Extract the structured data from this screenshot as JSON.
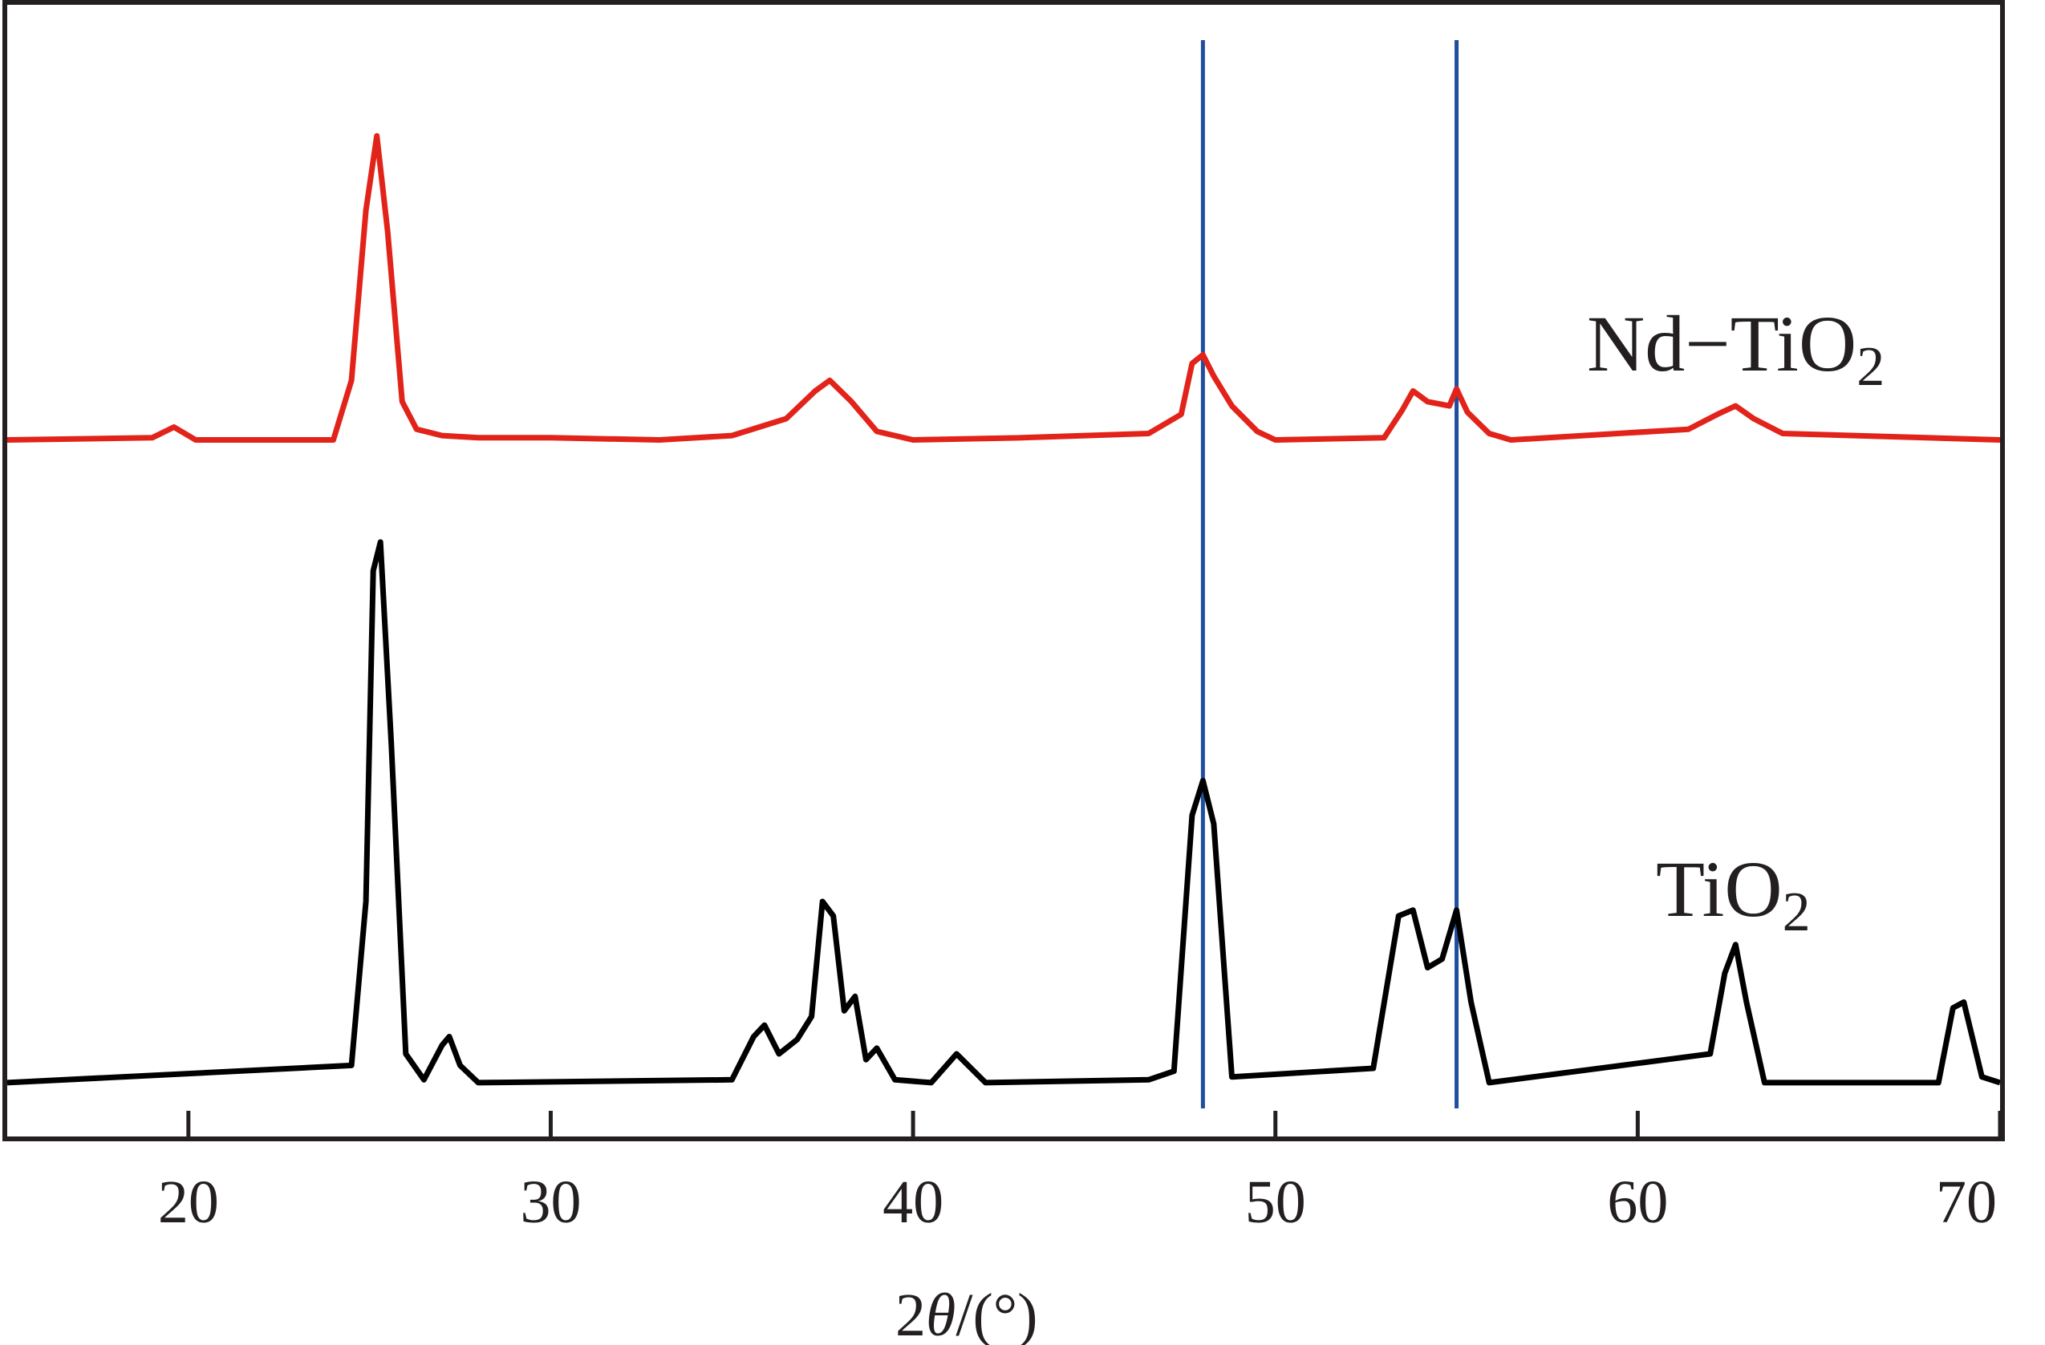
{
  "chart_data": {
    "type": "line",
    "title": "",
    "xlabel_parts": {
      "prefix": "2",
      "symbol": "θ",
      "suffix": "/(°)"
    },
    "ylabel": "",
    "xlim": [
      15,
      70
    ],
    "y_ticks_shown": false,
    "grid": false,
    "x_ticks": [
      20,
      30,
      40,
      50,
      60,
      70
    ],
    "reference_lines": [
      {
        "x": 48.0,
        "color": "#1f4e9e"
      },
      {
        "x": 55.0,
        "color": "#1f4e9e"
      }
    ],
    "series": [
      {
        "name_parts": {
          "prefix": "Nd−TiO",
          "subscript": "2"
        },
        "color": "#e2231a",
        "baseline": 0,
        "ylim": [
          -25,
          175
        ],
        "x": [
          15,
          19,
          19.6,
          20.2,
          24,
          24.5,
          24.9,
          25.2,
          25.5,
          25.9,
          26.3,
          27,
          28,
          30,
          33,
          35,
          36.5,
          37.3,
          37.7,
          38.3,
          39,
          40,
          43,
          46.5,
          47.4,
          47.7,
          48.0,
          48.3,
          48.8,
          49.5,
          50,
          53,
          53.5,
          53.8,
          54.2,
          54.8,
          55.0,
          55.3,
          55.9,
          56.5,
          61.4,
          62.2,
          62.7,
          63.2,
          64,
          70
        ],
        "y": [
          2,
          3,
          8,
          2,
          2,
          30,
          110,
          145,
          100,
          20,
          7,
          4,
          3,
          3,
          2,
          4,
          12,
          25,
          30,
          20,
          6,
          2,
          3,
          5,
          14,
          38,
          42,
          32,
          18,
          6,
          2,
          3,
          16,
          25,
          20,
          18,
          26,
          15,
          5,
          2,
          7,
          14,
          18,
          12,
          5,
          2
        ]
      },
      {
        "name_parts": {
          "prefix": "TiO",
          "subscript": "2"
        },
        "color": "#000000",
        "baseline": 0,
        "ylim": [
          -5,
          200
        ],
        "x": [
          15,
          24.5,
          24.9,
          25.1,
          25.3,
          25.6,
          26.0,
          26.5,
          27.0,
          27.2,
          27.5,
          28,
          35,
          35.6,
          35.9,
          36.3,
          36.8,
          37.2,
          37.5,
          37.8,
          38.1,
          38.4,
          38.7,
          39,
          39.5,
          40.5,
          41.2,
          42,
          46.5,
          47.2,
          47.7,
          48.0,
          48.3,
          48.8,
          52.7,
          53.4,
          53.8,
          54.2,
          54.6,
          55.0,
          55.4,
          55.9,
          62.0,
          62.4,
          62.7,
          63.0,
          63.5,
          68.3,
          68.7,
          69.0,
          69.5,
          70
        ],
        "y": [
          2,
          8,
          65,
          180,
          190,
          120,
          12,
          3,
          15,
          18,
          8,
          2,
          3,
          18,
          22,
          12,
          17,
          25,
          65,
          60,
          27,
          32,
          10,
          14,
          3,
          2,
          12,
          2,
          3,
          6,
          95,
          107,
          92,
          4,
          7,
          60,
          62,
          42,
          45,
          62,
          30,
          2,
          12,
          40,
          50,
          30,
          2,
          2,
          28,
          30,
          4,
          2
        ]
      }
    ]
  }
}
